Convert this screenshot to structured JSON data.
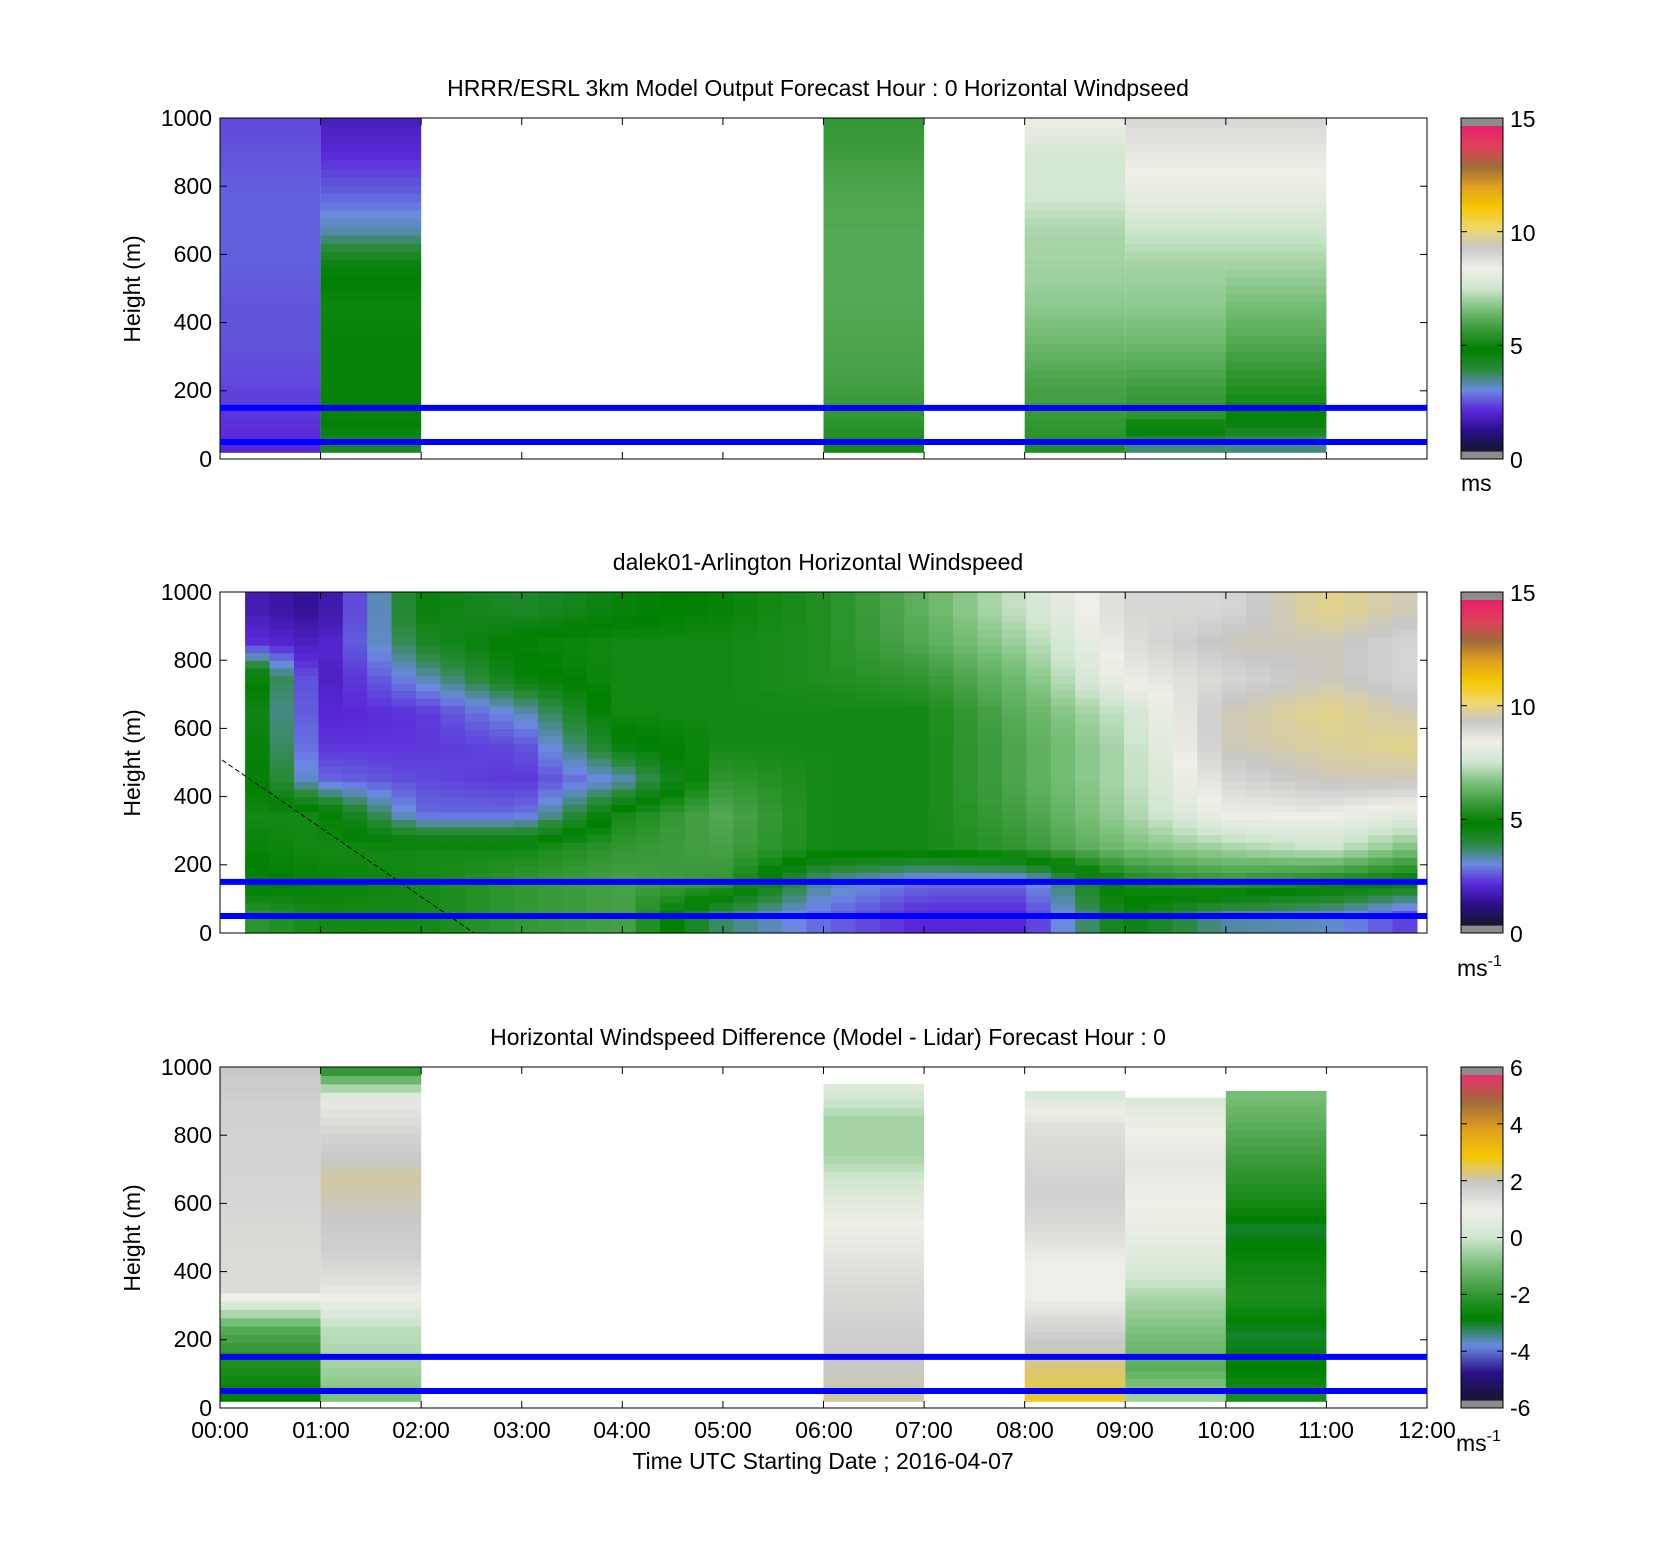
{
  "colors": {
    "windspeed_scale": [
      "#161630",
      "#2a0f8a",
      "#5a28d8",
      "#6a8ae0",
      "#2a8a3a",
      "#008000",
      "#3a9a3a",
      "#7ac07a",
      "#cfe6cf",
      "#f0eee8",
      "#c8c8c8",
      "#f0d868",
      "#f5c800",
      "#e0a020",
      "#a06a3a",
      "#e0405a",
      "#e8206a"
    ],
    "difference_scale": [
      "#161630",
      "#2a0f8a",
      "#6a8ae0",
      "#008000",
      "#3a9a3a",
      "#7ac07a",
      "#cfe6cf",
      "#f0eee8",
      "#c8c8c8",
      "#f5c800",
      "#e0a020",
      "#a06a3a",
      "#e8306a"
    ],
    "blue_line": "#0000ff",
    "colorbar_end": "#8c8c8c"
  },
  "chart_data": [
    {
      "type": "heatmap",
      "title": "HRRR/ESRL 3km Model Output   Forecast Hour : 0 Horizontal Windpseed",
      "ylabel": "Height (m)",
      "ylim": [
        0,
        1000
      ],
      "yticks": [
        "1000",
        "800",
        "600",
        "400",
        "200",
        "0"
      ],
      "xlim_hours": [
        0,
        12
      ],
      "colorbar": {
        "ticks": [
          "15",
          "10",
          "5",
          "0"
        ],
        "range": [
          0,
          15
        ],
        "unit": "ms"
      },
      "reference_lines_m": [
        150,
        50
      ],
      "columns": [
        {
          "start_hour": 0,
          "end_hour": 1,
          "bottom_m": 20,
          "top_m": 1000,
          "values": [
            1.8,
            2.0,
            2.2,
            2.3,
            2.3,
            2.4,
            2.4,
            2.4,
            2.3,
            2.2
          ]
        },
        {
          "start_hour": 1,
          "end_hour": 2,
          "bottom_m": 20,
          "top_m": 1000,
          "values": [
            4.0,
            4.8,
            4.8,
            4.8,
            4.9,
            4.5,
            3.1,
            2.4,
            1.9,
            1.5
          ]
        },
        {
          "start_hour": 6,
          "end_hour": 7,
          "bottom_m": 20,
          "top_m": 1000,
          "values": [
            5.0,
            5.5,
            5.8,
            5.9,
            6.0,
            6.0,
            6.0,
            5.9,
            5.7,
            5.5
          ]
        },
        {
          "start_hour": 8,
          "end_hour": 9,
          "bottom_m": 20,
          "top_m": 1000,
          "values": [
            5.2,
            5.6,
            5.9,
            6.4,
            6.8,
            7.0,
            7.1,
            7.6,
            7.6,
            8.4
          ]
        },
        {
          "start_hour": 9,
          "end_hour": 10,
          "bottom_m": 20,
          "top_m": 1000,
          "values": [
            3.2,
            5.4,
            5.8,
            6.4,
            6.8,
            7.0,
            7.5,
            8.2,
            8.6,
            9.0
          ]
        },
        {
          "start_hour": 10,
          "end_hour": 11,
          "bottom_m": 20,
          "top_m": 1000,
          "values": [
            3.2,
            4.8,
            5.4,
            6.0,
            6.5,
            7.0,
            7.5,
            8.2,
            8.6,
            9.0
          ]
        }
      ]
    },
    {
      "type": "heatmap",
      "title": "dalek01-Arlington  Horizontal Windspeed",
      "ylabel": "Height (m)",
      "ylim": [
        0,
        1000
      ],
      "yticks": [
        "1000",
        "800",
        "600",
        "400",
        "200",
        "0"
      ],
      "xlim_hours": [
        0,
        12
      ],
      "colorbar": {
        "ticks": [
          "15",
          "10",
          "5",
          "0"
        ],
        "range": [
          0,
          15
        ],
        "unit": "ms",
        "unit_exponent": "-1"
      },
      "reference_lines_m": [
        150,
        50
      ],
      "time_hours": [
        0.25,
        1.0,
        2.0,
        3.0,
        4.0,
        5.0,
        6.0,
        7.0,
        8.0,
        9.0,
        10.0,
        11.0,
        11.9
      ],
      "height_m": [
        50,
        150,
        250,
        350,
        450,
        550,
        650,
        750,
        850,
        950
      ],
      "values": [
        [
          5.5,
          4.5,
          4.8,
          5.0,
          5.0,
          5.0,
          4.8,
          5.5,
          2.0,
          1.5
        ],
        [
          5.0,
          4.8,
          5.0,
          5.0,
          2.5,
          2.0,
          1.8,
          1.5,
          1.5,
          1.0
        ],
        [
          5.0,
          5.0,
          5.0,
          2.5,
          2.2,
          2.0,
          2.0,
          3.0,
          4.0,
          4.5
        ],
        [
          5.5,
          5.5,
          5.0,
          2.5,
          2.0,
          2.2,
          3.0,
          4.5,
          4.8,
          4.0
        ],
        [
          5.8,
          5.8,
          5.5,
          5.0,
          3.0,
          4.5,
          5.0,
          5.0,
          5.0,
          4.5
        ],
        [
          3.5,
          5.5,
          5.8,
          6.0,
          5.5,
          5.0,
          5.0,
          5.0,
          5.0,
          4.8
        ],
        [
          2.5,
          3.2,
          5.0,
          5.0,
          5.0,
          5.0,
          5.0,
          5.2,
          5.2,
          5.2
        ],
        [
          1.8,
          2.5,
          5.0,
          5.0,
          5.0,
          5.0,
          5.0,
          5.5,
          6.0,
          6.2
        ],
        [
          1.8,
          2.5,
          5.5,
          5.8,
          6.0,
          6.0,
          6.2,
          6.5,
          7.0,
          7.5
        ],
        [
          4.5,
          5.0,
          6.5,
          7.0,
          7.2,
          7.2,
          7.5,
          8.5,
          8.8,
          9.0
        ],
        [
          3.2,
          5.5,
          7.0,
          8.5,
          9.0,
          9.5,
          9.5,
          9.0,
          9.5,
          9.0
        ],
        [
          3.0,
          5.0,
          7.5,
          8.5,
          9.5,
          9.8,
          10.0,
          9.5,
          9.5,
          10.0
        ],
        [
          2.0,
          4.5,
          6.5,
          8.0,
          9.5,
          10.0,
          9.5,
          9.0,
          9.0,
          9.5
        ]
      ]
    },
    {
      "type": "heatmap",
      "title": "Horizontal Windspeed Difference (Model - Lidar) Forecast Hour : 0",
      "ylabel": "Height (m)",
      "xlabel": "Time UTC  Starting Date ; 2016-04-07",
      "ylim": [
        0,
        1000
      ],
      "yticks": [
        "1000",
        "800",
        "600",
        "400",
        "200",
        "0"
      ],
      "xticks": [
        "00:00",
        "01:00",
        "02:00",
        "03:00",
        "04:00",
        "05:00",
        "06:00",
        "07:00",
        "08:00",
        "09:00",
        "10:00",
        "11:00",
        "12:00"
      ],
      "xlim_hours": [
        0,
        12
      ],
      "colorbar": {
        "ticks": [
          "6",
          "4",
          "2",
          "0",
          "-2",
          "-4",
          "-6"
        ],
        "range": [
          -6,
          6
        ],
        "unit": "ms",
        "unit_exponent": "-1"
      },
      "reference_lines_m": [
        150,
        50
      ],
      "columns": [
        {
          "start_hour": 0,
          "end_hour": 1,
          "bottom_m": 20,
          "top_m": 1000,
          "values": [
            -3.0,
            -2.5,
            -1.5,
            1.5,
            1.5,
            1.6,
            1.7,
            1.7,
            1.8,
            2.0
          ]
        },
        {
          "start_hour": 1,
          "end_hour": 2,
          "bottom_m": 20,
          "top_m": 1000,
          "values": [
            -1.0,
            -0.5,
            -0.2,
            1.2,
            1.8,
            2.0,
            2.2,
            1.8,
            1.2,
            -2.5
          ]
        },
        {
          "start_hour": 6,
          "end_hour": 7,
          "bottom_m": 20,
          "top_m": 950,
          "values": [
            2.2,
            2.0,
            1.8,
            1.6,
            1.3,
            1.0,
            0.3,
            -0.5,
            -0.5,
            0.5
          ]
        },
        {
          "start_hour": 8,
          "end_hour": 9,
          "bottom_m": 20,
          "top_m": 930,
          "values": [
            2.8,
            2.4,
            1.8,
            1.0,
            1.0,
            1.5,
            1.8,
            1.6,
            1.4,
            0.2
          ]
        },
        {
          "start_hour": 9,
          "end_hour": 10,
          "bottom_m": 20,
          "top_m": 910,
          "values": [
            -0.5,
            -1.5,
            -1.0,
            -0.5,
            0.3,
            0.8,
            1.0,
            1.2,
            1.0,
            0.3
          ]
        },
        {
          "start_hour": 10,
          "end_hour": 11,
          "bottom_m": 20,
          "top_m": 930,
          "values": [
            -2.5,
            -3.0,
            -3.2,
            -2.5,
            -2.8,
            -3.2,
            -2.5,
            -2.0,
            -1.5,
            -1.0
          ]
        }
      ]
    }
  ]
}
